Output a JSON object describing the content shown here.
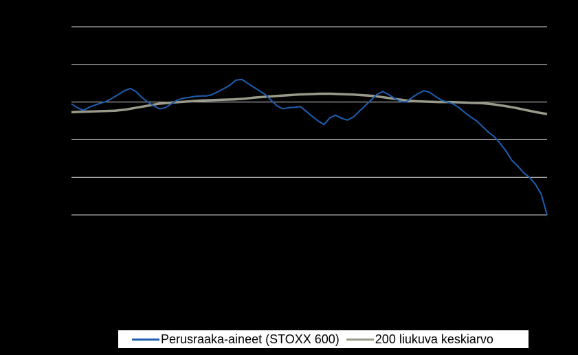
{
  "chart_data": {
    "type": "line",
    "title": "",
    "xlabel": "",
    "ylabel": "",
    "ylim": [
      0,
      5
    ],
    "grid": true,
    "legend_position": "bottom",
    "series": [
      {
        "name": "Perusraaka-aineet (STOXX 600)",
        "color": "#1f5fae",
        "values": [
          2.95,
          2.85,
          2.78,
          2.86,
          2.92,
          2.97,
          3.02,
          3.11,
          3.2,
          3.3,
          3.36,
          3.28,
          3.12,
          3.0,
          2.9,
          2.82,
          2.85,
          2.95,
          3.05,
          3.1,
          3.12,
          3.15,
          3.16,
          3.16,
          3.2,
          3.28,
          3.36,
          3.45,
          3.58,
          3.6,
          3.5,
          3.4,
          3.3,
          3.2,
          3.05,
          2.9,
          2.82,
          2.85,
          2.86,
          2.88,
          2.75,
          2.62,
          2.5,
          2.4,
          2.58,
          2.65,
          2.57,
          2.52,
          2.6,
          2.75,
          2.9,
          3.05,
          3.2,
          3.28,
          3.2,
          3.1,
          3.02,
          3.0,
          3.12,
          3.22,
          3.3,
          3.26,
          3.15,
          3.05,
          3.0,
          2.95,
          2.85,
          2.72,
          2.6,
          2.5,
          2.35,
          2.2,
          2.08,
          1.9,
          1.7,
          1.45,
          1.3,
          1.12,
          1.0,
          0.82,
          0.55,
          0.0
        ]
      },
      {
        "name": "200 liukuva keskiarvo",
        "color": "#9a9a8a",
        "values": [
          2.73,
          2.74,
          2.75,
          2.76,
          2.77,
          2.8,
          2.85,
          2.9,
          2.95,
          2.98,
          3.0,
          3.02,
          3.04,
          3.05,
          3.06,
          3.07,
          3.09,
          3.12,
          3.14,
          3.16,
          3.18,
          3.2,
          3.21,
          3.22,
          3.22,
          3.21,
          3.2,
          3.18,
          3.16,
          3.12,
          3.08,
          3.04,
          3.02,
          3.01,
          3.0,
          3.0,
          2.99,
          2.98,
          2.97,
          2.94,
          2.9,
          2.85,
          2.79,
          2.73,
          2.68
        ]
      }
    ]
  }
}
